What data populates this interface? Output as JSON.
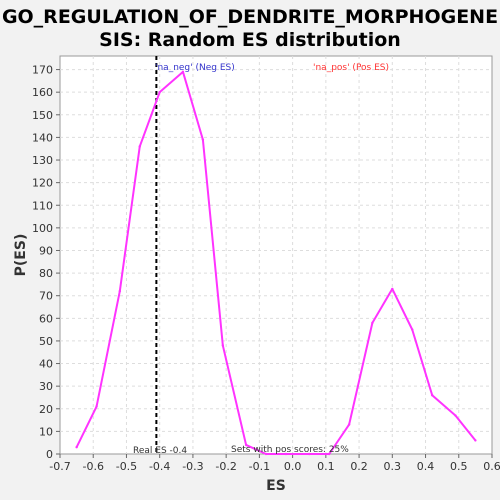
{
  "chart_data": {
    "type": "line",
    "title_line1": "GO_REGULATION_OF_DENDRITE_MORPHOGENE",
    "title_line2": "SIS: Random ES distribution",
    "xlabel": "ES",
    "ylabel": "P(ES)",
    "xlim": [
      -0.7,
      0.6
    ],
    "ylim": [
      0,
      176
    ],
    "xticks": [
      "-0.7",
      "-0.6",
      "-0.5",
      "-0.4",
      "-0.3",
      "-0.2",
      "-0.1",
      "0.0",
      "0.1",
      "0.2",
      "0.3",
      "0.4",
      "0.5",
      "0.6"
    ],
    "yticks": [
      "0",
      "10",
      "20",
      "30",
      "40",
      "50",
      "60",
      "70",
      "80",
      "90",
      "100",
      "110",
      "120",
      "130",
      "140",
      "150",
      "160",
      "170"
    ],
    "grid": true,
    "series": [
      {
        "color": "#ff33ff",
        "x": [
          -0.65,
          -0.59,
          -0.52,
          -0.46,
          -0.4,
          -0.33,
          -0.27,
          -0.21,
          -0.14,
          -0.08,
          -0.02,
          0.05,
          0.11,
          0.17,
          0.24,
          0.3,
          0.36,
          0.42,
          0.49,
          0.55
        ],
        "y": [
          3,
          21,
          72,
          136,
          160,
          169,
          139,
          48,
          4,
          0,
          0,
          0,
          0,
          13,
          58,
          73,
          55,
          26,
          17,
          6
        ]
      }
    ],
    "real_es": -0.41,
    "annotations": {
      "neg_label": "'na_neg' (Neg ES)",
      "pos_label": "'na_pos' (Pos ES)",
      "real_es_label": "Real ES -0.4",
      "pos_scores_label": "Sets with pos scores: 25%"
    },
    "colors": {
      "neg_label": "#3333cc",
      "pos_label": "#ff3333",
      "real_es_line": "#000000",
      "plot_bg": "#ffffff",
      "grid": "#dddddd"
    }
  }
}
